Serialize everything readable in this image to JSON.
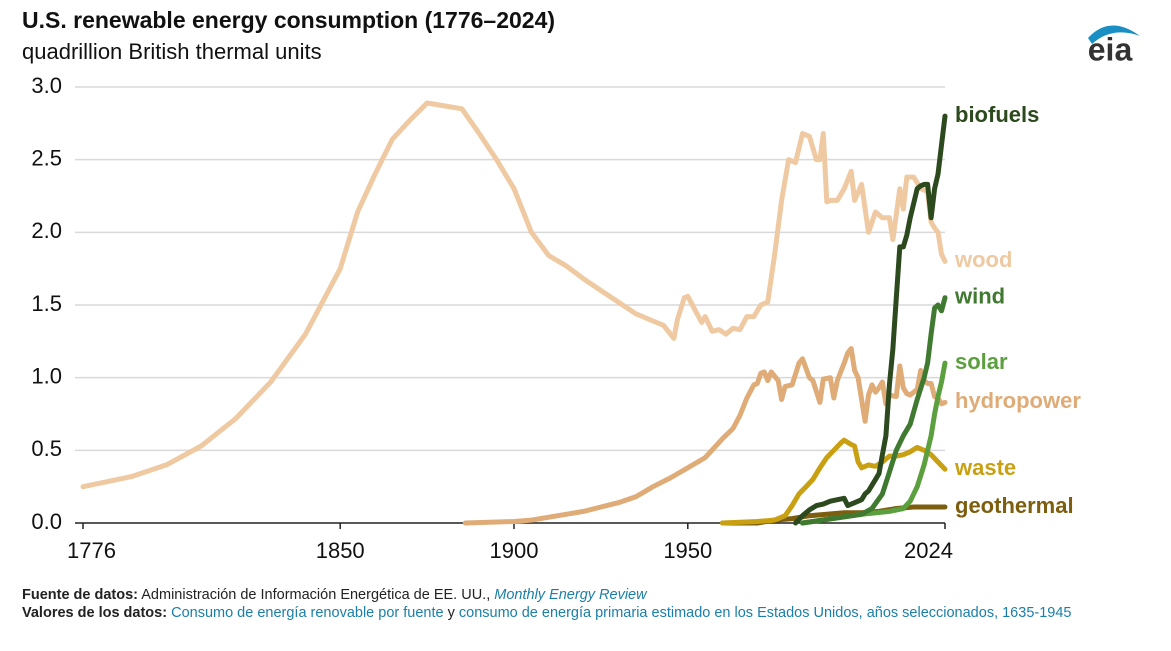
{
  "chart_data": {
    "type": "line",
    "title": "U.S. renewable energy consumption (1776–2024)",
    "subtitle": "quadrillion British thermal units",
    "logo": "eia",
    "xlim": [
      1776,
      2024
    ],
    "xticks": [
      1776,
      1850,
      1900,
      1950,
      2024
    ],
    "ylim": [
      0,
      3
    ],
    "yticks": [
      {
        "value": 0,
        "label": "0.0"
      },
      0.5,
      {
        "value": 1,
        "label": "1.0"
      },
      1.5,
      {
        "value": 2,
        "label": "2.0"
      },
      2.5,
      {
        "value": 3,
        "label": "3.0"
      }
    ],
    "grid": true,
    "series": [
      {
        "name": "wood",
        "color": "#efc9a1",
        "x": [
          1776,
          1790,
          1800,
          1810,
          1820,
          1830,
          1840,
          1850,
          1855,
          1860,
          1865,
          1870,
          1875,
          1880,
          1885,
          1890,
          1895,
          1900,
          1905,
          1910,
          1915,
          1920,
          1925,
          1930,
          1935,
          1940,
          1943,
          1946,
          1947,
          1949,
          1950,
          1952,
          1954,
          1955,
          1957,
          1959,
          1961,
          1963,
          1965,
          1967,
          1969,
          1971,
          1973,
          1975,
          1977,
          1979,
          1981,
          1983,
          1985,
          1987,
          1988,
          1989,
          1990,
          1991,
          1993,
          1995,
          1997,
          1998,
          2000,
          2002,
          2004,
          2006,
          2008,
          2009,
          2011,
          2012,
          2013,
          2015,
          2017,
          2019,
          2020,
          2021,
          2022,
          2023,
          2024
        ],
        "values": [
          0.25,
          0.32,
          0.4,
          0.53,
          0.72,
          0.97,
          1.3,
          1.75,
          2.14,
          2.4,
          2.64,
          2.77,
          2.89,
          2.87,
          2.85,
          2.68,
          2.5,
          2.3,
          2.0,
          1.84,
          1.77,
          1.68,
          1.6,
          1.52,
          1.44,
          1.39,
          1.36,
          1.27,
          1.4,
          1.55,
          1.56,
          1.47,
          1.38,
          1.42,
          1.32,
          1.33,
          1.3,
          1.34,
          1.33,
          1.42,
          1.42,
          1.5,
          1.52,
          1.85,
          2.22,
          2.5,
          2.48,
          2.68,
          2.66,
          2.5,
          2.5,
          2.68,
          2.21,
          2.22,
          2.22,
          2.3,
          2.42,
          2.22,
          2.33,
          2.0,
          2.14,
          2.1,
          2.1,
          1.95,
          2.3,
          2.16,
          2.38,
          2.38,
          2.3,
          2.28,
          2.07,
          2.03,
          2.0,
          1.85,
          1.8
        ]
      },
      {
        "name": "hydropower",
        "color": "#dfab77",
        "x": [
          1886,
          1900,
          1905,
          1910,
          1915,
          1920,
          1925,
          1930,
          1935,
          1940,
          1945,
          1950,
          1955,
          1960,
          1963,
          1965,
          1967,
          1969,
          1970,
          1971,
          1972,
          1973,
          1974,
          1976,
          1977,
          1978,
          1980,
          1982,
          1983,
          1985,
          1986,
          1988,
          1989,
          1991,
          1992,
          1993,
          1995,
          1996,
          1997,
          1998,
          1999,
          2000,
          2001,
          2002,
          2003,
          2004,
          2005,
          2006,
          2007,
          2008,
          2010,
          2011,
          2012,
          2013,
          2014,
          2016,
          2017,
          2018,
          2019,
          2020,
          2021,
          2022,
          2023,
          2024
        ],
        "values": [
          0,
          0.01,
          0.02,
          0.04,
          0.06,
          0.08,
          0.11,
          0.14,
          0.18,
          0.25,
          0.31,
          0.38,
          0.45,
          0.58,
          0.65,
          0.74,
          0.86,
          0.95,
          0.96,
          1.03,
          1.04,
          0.98,
          1.04,
          0.98,
          0.85,
          0.94,
          0.95,
          1.1,
          1.13,
          1.0,
          0.98,
          0.83,
          0.99,
          1.0,
          0.86,
          0.98,
          1.1,
          1.17,
          1.2,
          1.05,
          1.0,
          0.85,
          0.7,
          0.88,
          0.95,
          0.9,
          0.93,
          0.97,
          0.82,
          0.88,
          0.87,
          1.08,
          0.93,
          0.89,
          0.88,
          0.92,
          1.05,
          0.98,
          0.96,
          0.96,
          0.87,
          0.86,
          0.82,
          0.83
        ]
      },
      {
        "name": "geothermal",
        "color": "#7d5e0f",
        "x": [
          1960,
          1970,
          1975,
          1980,
          1985,
          1990,
          1995,
          2000,
          2005,
          2010,
          2015,
          2020,
          2024
        ],
        "values": [
          0,
          0,
          0.02,
          0.03,
          0.05,
          0.06,
          0.07,
          0.07,
          0.08,
          0.1,
          0.11,
          0.11,
          0.11
        ]
      },
      {
        "name": "waste",
        "color": "#c9a012",
        "x": [
          1960,
          1970,
          1975,
          1978,
          1980,
          1982,
          1984,
          1986,
          1988,
          1990,
          1992,
          1994,
          1995,
          1997,
          1998,
          1999,
          2000,
          2002,
          2004,
          2006,
          2008,
          2010,
          2012,
          2014,
          2016,
          2018,
          2020,
          2022,
          2024
        ],
        "values": [
          0,
          0.01,
          0.02,
          0.05,
          0.12,
          0.2,
          0.25,
          0.3,
          0.38,
          0.45,
          0.5,
          0.55,
          0.57,
          0.54,
          0.53,
          0.42,
          0.38,
          0.4,
          0.39,
          0.42,
          0.46,
          0.46,
          0.47,
          0.49,
          0.52,
          0.5,
          0.47,
          0.42,
          0.37
        ]
      },
      {
        "name": "solar",
        "color": "#5b9f3e",
        "x": [
          1983,
          2000,
          2008,
          2012,
          2014,
          2016,
          2018,
          2020,
          2021,
          2022,
          2023,
          2024
        ],
        "values": [
          0,
          0.06,
          0.08,
          0.1,
          0.15,
          0.25,
          0.4,
          0.6,
          0.75,
          0.87,
          0.97,
          1.1
        ]
      },
      {
        "name": "wind",
        "color": "#3f7a30",
        "x": [
          1983,
          2000,
          2003,
          2006,
          2008,
          2010,
          2012,
          2014,
          2016,
          2018,
          2019,
          2020,
          2021,
          2022,
          2023,
          2024
        ],
        "values": [
          0,
          0.06,
          0.1,
          0.2,
          0.35,
          0.5,
          0.6,
          0.68,
          0.85,
          1.0,
          1.1,
          1.3,
          1.48,
          1.5,
          1.46,
          1.55
        ]
      },
      {
        "name": "biofuels",
        "color": "#2c4a1d",
        "x": [
          1981,
          1983,
          1985,
          1987,
          1989,
          1991,
          1993,
          1995,
          1996,
          1998,
          2000,
          2001,
          2002,
          2003,
          2004,
          2005,
          2006,
          2007,
          2008,
          2009,
          2010,
          2011,
          2012,
          2013,
          2014,
          2015,
          2016,
          2017,
          2018,
          2019,
          2020,
          2021,
          2022,
          2023,
          2024
        ],
        "values": [
          0,
          0.05,
          0.09,
          0.12,
          0.13,
          0.15,
          0.16,
          0.17,
          0.12,
          0.14,
          0.16,
          0.2,
          0.22,
          0.26,
          0.3,
          0.34,
          0.47,
          0.6,
          0.95,
          1.2,
          1.55,
          1.9,
          1.9,
          1.98,
          2.1,
          2.2,
          2.3,
          2.32,
          2.33,
          2.33,
          2.1,
          2.3,
          2.4,
          2.6,
          2.8
        ]
      }
    ]
  },
  "footer": {
    "source_label": "Fuente de datos:",
    "source_text": "Administración de Información Energética de EE. UU.,",
    "source_link": "Monthly Energy Review",
    "values_label": "Valores de los datos:",
    "values_link1": "Consumo de energía renovable por fuente",
    "values_joiner": "y",
    "values_link2": "consumo de energía primaria estimado en los Estados Unidos, años seleccionados, 1635-1945"
  }
}
